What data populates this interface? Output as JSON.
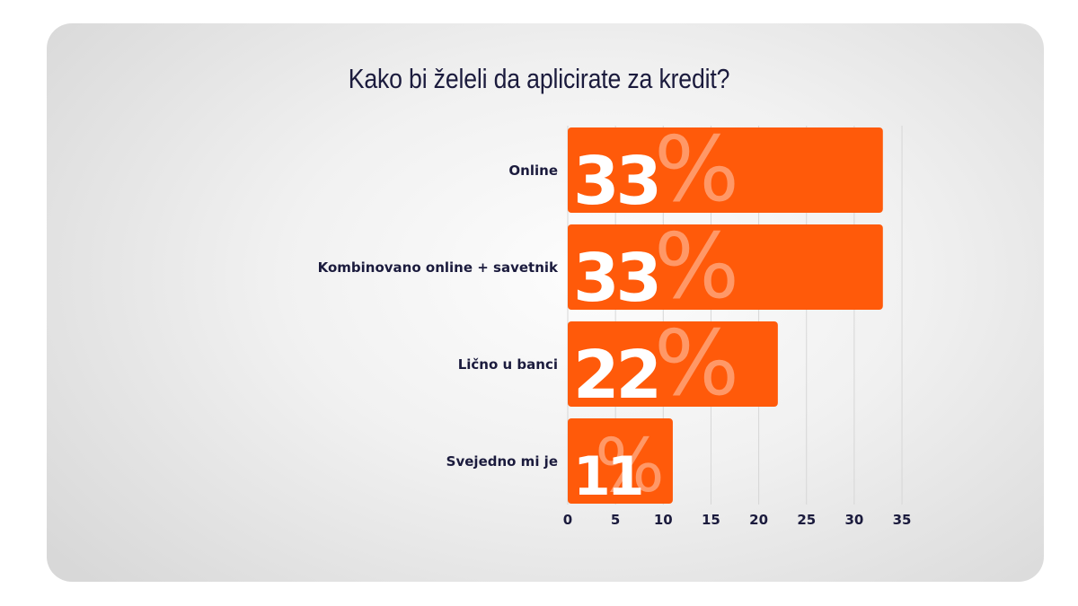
{
  "chart_data": {
    "type": "bar",
    "orientation": "horizontal",
    "title": "Kako bi želeli da aplicirate za kredit?",
    "categories": [
      "Online",
      "Kombinovano online + savetnik",
      "Lično u banci",
      "Svejedno mi je"
    ],
    "values": [
      33,
      33,
      22,
      11
    ],
    "value_labels": [
      "33",
      "33",
      "22",
      "11"
    ],
    "value_suffix": "%",
    "xlim": [
      0,
      35
    ],
    "xticks": [
      "0",
      "5",
      "10",
      "15",
      "20",
      "25",
      "30",
      "35"
    ],
    "grid": "vertical",
    "bar_color": "#ff5a0a",
    "text_color": "#1b1b3d"
  }
}
